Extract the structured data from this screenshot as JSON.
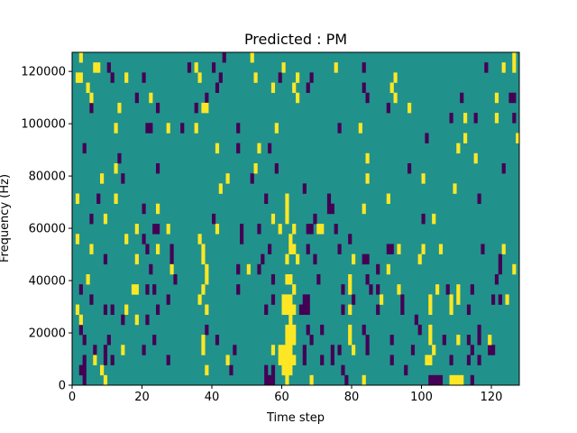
{
  "chart_data": {
    "type": "heatmap",
    "title": "Predicted : PM",
    "xlabel": "Time step",
    "ylabel": "Frequency (Hz)",
    "xlim": [
      0,
      128
    ],
    "ylim": [
      0,
      127300
    ],
    "n_rows": 33,
    "x_ticks": [
      0,
      20,
      40,
      60,
      80,
      100,
      120
    ],
    "x_tick_labels": [
      "0",
      "20",
      "40",
      "60",
      "80",
      "100",
      "120"
    ],
    "y_ticks": [
      0,
      20000,
      40000,
      60000,
      80000,
      100000,
      120000
    ],
    "y_tick_labels": [
      "0",
      "20000",
      "40000",
      "60000",
      "80000",
      "100000",
      "120000"
    ],
    "colors": {
      "background": "#21918c",
      "low": "#440154",
      "high": "#fde725"
    },
    "values_legend": {
      "background": 0.5,
      "low": 0,
      "high": 1
    },
    "high_cells_by_row": {
      "32": [
        2,
        51,
        126
      ],
      "31": [
        6,
        7,
        35,
        60,
        75,
        123,
        126
      ],
      "30": [
        1,
        2,
        15,
        36,
        52,
        64,
        92
      ],
      "29": [
        4,
        57,
        63,
        91
      ],
      "28": [
        5,
        22,
        64,
        92,
        121
      ],
      "27": [
        13,
        37,
        38,
        96
      ],
      "26": [
        112,
        121
      ],
      "25": [
        12,
        27,
        35,
        58,
        82
      ],
      "24": [
        112,
        127
      ],
      "23": [
        41,
        53,
        110
      ],
      "22": [
        84,
        115
      ],
      "21": [
        12,
        52
      ],
      "20": [
        8,
        44,
        84,
        100
      ],
      "19": [
        42,
        109
      ],
      "18": [
        1,
        12,
        61,
        90
      ],
      "17": [
        24,
        61,
        83
      ],
      "16": [
        9,
        57,
        61,
        103
      ],
      "15": [
        18,
        27,
        41,
        59,
        63,
        70,
        71
      ],
      "14": [
        1,
        15,
        36,
        62
      ],
      "13": [
        5,
        24,
        37,
        62,
        63,
        93,
        100,
        105,
        123
      ],
      "12": [
        18,
        37,
        61,
        64,
        80,
        99
      ],
      "11": [
        28,
        38,
        50,
        90,
        126
      ],
      "10": [
        4,
        38,
        61,
        62,
        79
      ],
      "9": [
        17,
        18,
        37,
        63,
        79,
        93,
        104,
        110
      ],
      "8": [
        36,
        60,
        61,
        62,
        88,
        102,
        108,
        110,
        124
      ],
      "7": [
        1,
        15,
        38,
        60,
        61,
        62,
        63,
        79,
        102,
        108
      ],
      "6": [
        2,
        18,
        62
      ],
      "5": [
        61,
        62,
        63,
        79,
        102
      ],
      "4": [
        37,
        61,
        62,
        63,
        79,
        102,
        110,
        119
      ],
      "3": [
        14,
        37,
        57,
        59,
        60,
        61,
        62,
        80,
        103
      ],
      "2": [
        6,
        44,
        59,
        60,
        61,
        62,
        63,
        101,
        102
      ],
      "1": [
        8,
        38,
        60,
        61,
        62
      ],
      "0": [
        9,
        61,
        68,
        83,
        108,
        109,
        110,
        111
      ]
    },
    "low_cells_by_row": {
      "32": [
        43
      ],
      "31": [
        10,
        33,
        40,
        83,
        118
      ],
      "30": [
        11,
        20,
        42,
        59,
        68
      ],
      "29": [
        41,
        67,
        83
      ],
      "28": [
        18,
        38,
        84,
        111,
        125,
        126
      ],
      "27": [
        5,
        24,
        35,
        90
      ],
      "26": [
        108,
        115,
        126
      ],
      "25": [
        21,
        22,
        31,
        47,
        76
      ],
      "24": [
        101
      ],
      "23": [
        3,
        47,
        56
      ],
      "22": [
        13
      ],
      "21": [
        24,
        58,
        96,
        123
      ],
      "20": [
        14,
        51
      ],
      "19": [
        66
      ],
      "18": [
        7,
        55,
        73,
        116
      ],
      "17": [
        20,
        73,
        74
      ],
      "16": [
        5,
        40,
        69,
        100
      ],
      "15": [
        23,
        24,
        48,
        53,
        67,
        68,
        75
      ],
      "14": [
        20,
        48,
        79
      ],
      "13": [
        21,
        28,
        56,
        67,
        76,
        90,
        91,
        117
      ],
      "12": [
        9,
        28,
        54,
        69,
        83,
        84,
        122
      ],
      "11": [
        22,
        47,
        53,
        87,
        122
      ],
      "10": [
        29,
        57,
        70,
        84,
        121
      ],
      "9": [
        2,
        21,
        23,
        47,
        77,
        85,
        87,
        107,
        114
      ],
      "8": [
        5,
        27,
        57,
        66,
        67,
        80,
        94,
        120,
        122
      ],
      "7": [
        9,
        11,
        24,
        55,
        65,
        66,
        67,
        77,
        87,
        94,
        113
      ],
      "6": [
        14,
        21,
        98
      ],
      "5": [
        2,
        38,
        67,
        71,
        83,
        99,
        116
      ],
      "4": [
        3,
        10,
        23,
        41,
        68,
        84,
        91,
        106,
        113,
        116
      ],
      "3": [
        6,
        9,
        20,
        46,
        66,
        74,
        76,
        84,
        97,
        114,
        119,
        120
      ],
      "2": [
        3,
        9,
        11,
        27,
        66,
        71,
        74,
        91,
        108,
        113,
        116
      ],
      "1": [
        2,
        3,
        45,
        55,
        57,
        77,
        95
      ],
      "0": [
        3,
        55,
        56,
        57,
        78,
        102,
        103,
        104,
        105,
        114
      ]
    }
  }
}
